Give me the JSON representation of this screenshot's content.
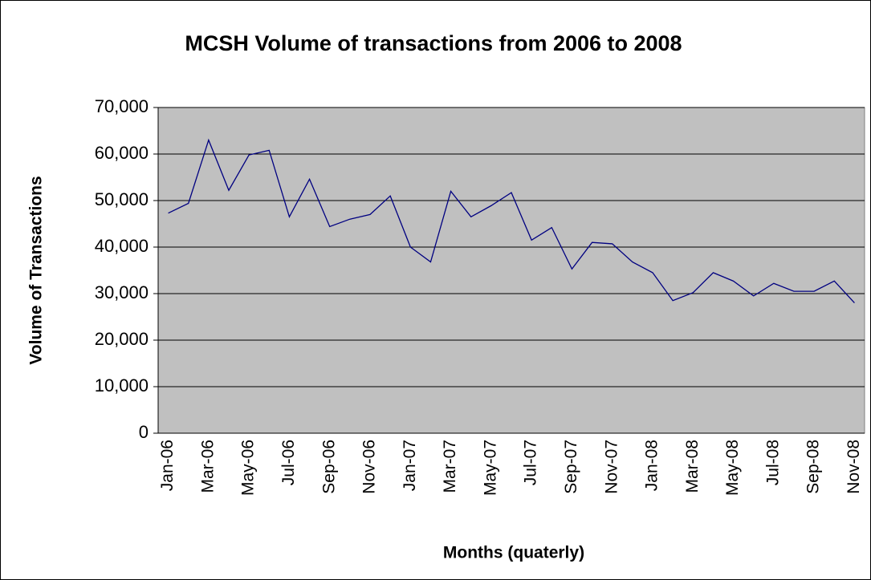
{
  "chart_data": {
    "type": "line",
    "title": "MCSH Volume of transactions from 2006 to 2008",
    "x_label": "Months (quaterly)",
    "y_label": "Volume of Transactions",
    "categories": [
      "Jan-06",
      null,
      "Mar-06",
      null,
      "May-06",
      null,
      "Jul-06",
      null,
      "Sep-06",
      null,
      "Nov-06",
      null,
      "Jan-07",
      null,
      "Mar-07",
      null,
      "May-07",
      null,
      "Jul-07",
      null,
      "Sep-07",
      null,
      "Nov-07",
      null,
      "Jan-08",
      null,
      "Mar-08",
      null,
      "May-08",
      null,
      "Jul-08",
      null,
      "Sep-08",
      null,
      "Nov-08"
    ],
    "series": [
      {
        "name": "Volume of Transactions",
        "color": "#000080",
        "values": [
          47300,
          49400,
          63000,
          52200,
          59800,
          60800,
          46500,
          54600,
          44400,
          46000,
          47000,
          51000,
          40000,
          36800,
          52000,
          46500,
          48900,
          51700,
          41500,
          44200,
          35300,
          41000,
          40700,
          36800,
          34500,
          28500,
          30200,
          34500,
          32700,
          29500,
          32200,
          30500,
          30500,
          32700,
          28000
        ]
      }
    ],
    "ylim": [
      0,
      70000
    ],
    "yticks": [
      0,
      {
        "value": 10000,
        "label": "10,000"
      },
      {
        "value": 20000,
        "label": "20,000"
      },
      {
        "value": 30000,
        "label": "30,000"
      },
      {
        "value": 40000,
        "label": "40,000"
      },
      {
        "value": 50000,
        "label": "50,000"
      },
      {
        "value": 60000,
        "label": "60,000"
      },
      {
        "value": 70000,
        "label": "70,000"
      }
    ],
    "grid": true,
    "plot_background": "#c0c0c0"
  }
}
